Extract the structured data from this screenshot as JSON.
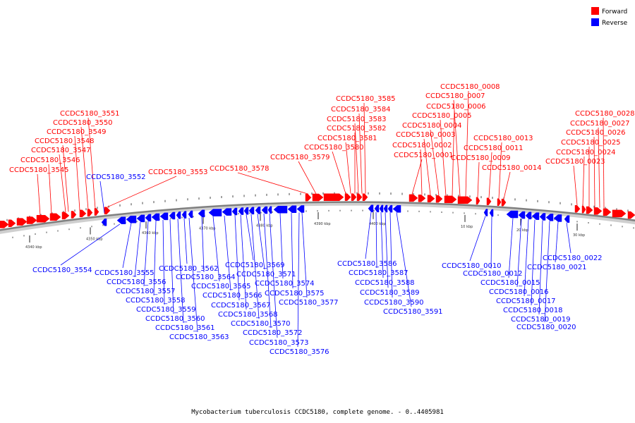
{
  "caption": "Mycobacterium tuberculosis CCDC5180, complete genome. - 0..4405981",
  "legend": [
    {
      "label": "Forward",
      "color": "#ff0000"
    },
    {
      "label": "Reverse",
      "color": "#0000ff"
    }
  ],
  "colors": {
    "forward": "#ff0000",
    "reverse": "#0000ff",
    "backbone": "#808080"
  },
  "ticks": [
    "4340 kbp",
    "4350 kbp",
    "4360 kbp",
    "4370 kbp",
    "4380 kbp",
    "4390 kbp",
    "4400 kbp",
    "10 kbp",
    "20 kbp",
    "30 kbp"
  ],
  "forward_labels": [
    "CCDC5180_3545",
    "CCDC5180_3546",
    "CCDC5180_3547",
    "CCDC5180_3548",
    "CCDC5180_3549",
    "CCDC5180_3550",
    "CCDC5180_3551",
    "CCDC5180_3553",
    "CCDC5180_3578",
    "CCDC5180_3579",
    "CCDC5180_3580",
    "CCDC5180_3581",
    "CCDC5180_3582",
    "CCDC5180_3583",
    "CCDC5180_3584",
    "CCDC5180_3585",
    "CCDC5180_0001",
    "CCDC5180_0002",
    "CCDC5180_0003",
    "CCDC5180_0004",
    "CCDC5180_0005",
    "CCDC5180_0006",
    "CCDC5180_0007",
    "CCDC5180_0008",
    "CCDC5180_0009",
    "CCDC5180_0011",
    "CCDC5180_0013",
    "CCDC5180_0014",
    "CCDC5180_0023",
    "CCDC5180_0024",
    "CCDC5180_0025",
    "CCDC5180_0026",
    "CCDC5180_0027",
    "CCDC5180_0028"
  ],
  "reverse_labels": [
    "CCDC5180_3552",
    "CCDC5180_3554",
    "CCDC5180_3555",
    "CCDC5180_3556",
    "CCDC5180_3557",
    "CCDC5180_3558",
    "CCDC5180_3559",
    "CCDC5180_3560",
    "CCDC5180_3561",
    "CCDC5180_3562",
    "CCDC5180_3563",
    "CCDC5180_3564",
    "CCDC5180_3565",
    "CCDC5180_3566",
    "CCDC5180_3567",
    "CCDC5180_3568",
    "CCDC5180_3569",
    "CCDC5180_3570",
    "CCDC5180_3571",
    "CCDC5180_3572",
    "CCDC5180_3573",
    "CCDC5180_3574",
    "CCDC5180_3575",
    "CCDC5180_3576",
    "CCDC5180_3577",
    "CCDC5180_3586",
    "CCDC5180_3587",
    "CCDC5180_3588",
    "CCDC5180_3589",
    "CCDC5180_3590",
    "CCDC5180_3591",
    "CCDC5180_0010",
    "CCDC5180_0012",
    "CCDC5180_0015",
    "CCDC5180_0016",
    "CCDC5180_0017",
    "CCDC5180_0018",
    "CCDC5180_0019",
    "CCDC5180_0020",
    "CCDC5180_0021",
    "CCDC5180_0022"
  ]
}
